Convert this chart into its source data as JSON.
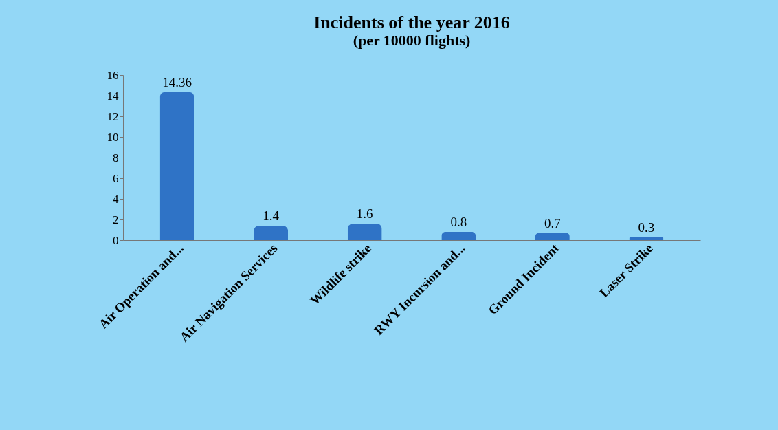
{
  "chart_data": {
    "type": "bar",
    "title": "Incidents of the year 2016",
    "subtitle": "(per 10000 flights)",
    "categories": [
      "Air Operation and...",
      "Air Navigation Services",
      "Wildlife strike",
      "RWY Incursion and...",
      "Ground Incident",
      "Laser Strike"
    ],
    "values": [
      14.36,
      1.4,
      1.6,
      0.8,
      0.7,
      0.3
    ],
    "color": "#2f73c6",
    "ylim": [
      0,
      16
    ],
    "yticks": [
      0,
      2,
      4,
      6,
      8,
      10,
      12,
      14,
      16
    ],
    "data_labels": true,
    "grid": false
  }
}
